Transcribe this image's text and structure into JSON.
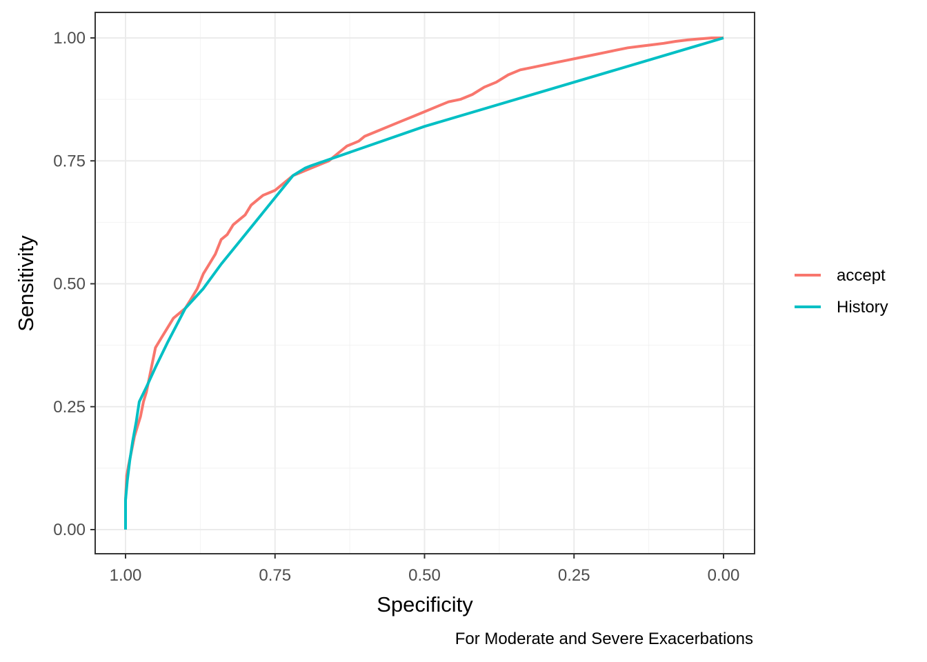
{
  "chart_data": {
    "type": "line",
    "title": "",
    "xlabel": "Specificity",
    "ylabel": "Sensitivity",
    "caption": "For Moderate and Severe Exacerbations",
    "xlim": [
      1.0,
      0.0
    ],
    "ylim": [
      0.0,
      1.0
    ],
    "x_reversed": true,
    "grid": true,
    "legend_position": "right",
    "x_tick_labels": [
      "1.00",
      "0.75",
      "0.50",
      "0.25",
      "0.00"
    ],
    "x_tick_values": [
      1.0,
      0.75,
      0.5,
      0.25,
      0.0
    ],
    "y_tick_labels": [
      "0.00",
      "0.25",
      "0.50",
      "0.75",
      "1.00"
    ],
    "y_tick_values": [
      0.0,
      0.25,
      0.5,
      0.75,
      1.0
    ],
    "series": [
      {
        "name": "accept",
        "color": "#F8766D",
        "x": [
          1.0,
          1.0,
          0.998,
          0.995,
          0.99,
          0.985,
          0.98,
          0.975,
          0.97,
          0.965,
          0.96,
          0.955,
          0.95,
          0.94,
          0.93,
          0.92,
          0.91,
          0.9,
          0.89,
          0.88,
          0.87,
          0.86,
          0.85,
          0.84,
          0.83,
          0.82,
          0.81,
          0.8,
          0.79,
          0.78,
          0.77,
          0.76,
          0.75,
          0.74,
          0.73,
          0.72,
          0.71,
          0.7,
          0.69,
          0.68,
          0.67,
          0.66,
          0.65,
          0.64,
          0.63,
          0.62,
          0.61,
          0.6,
          0.58,
          0.56,
          0.54,
          0.52,
          0.5,
          0.48,
          0.46,
          0.44,
          0.42,
          0.4,
          0.38,
          0.36,
          0.34,
          0.32,
          0.3,
          0.28,
          0.26,
          0.24,
          0.22,
          0.2,
          0.18,
          0.16,
          0.14,
          0.12,
          0.1,
          0.08,
          0.06,
          0.04,
          0.02,
          0.0
        ],
        "y": [
          0.0,
          0.06,
          0.11,
          0.13,
          0.16,
          0.19,
          0.21,
          0.23,
          0.26,
          0.28,
          0.31,
          0.34,
          0.37,
          0.39,
          0.41,
          0.43,
          0.44,
          0.45,
          0.47,
          0.49,
          0.52,
          0.54,
          0.56,
          0.59,
          0.6,
          0.62,
          0.63,
          0.64,
          0.66,
          0.67,
          0.68,
          0.685,
          0.69,
          0.7,
          0.71,
          0.72,
          0.725,
          0.73,
          0.735,
          0.74,
          0.745,
          0.75,
          0.76,
          0.77,
          0.78,
          0.785,
          0.79,
          0.8,
          0.81,
          0.82,
          0.83,
          0.84,
          0.85,
          0.86,
          0.87,
          0.875,
          0.885,
          0.9,
          0.91,
          0.925,
          0.935,
          0.94,
          0.945,
          0.95,
          0.955,
          0.96,
          0.965,
          0.97,
          0.975,
          0.98,
          0.983,
          0.986,
          0.989,
          0.993,
          0.996,
          0.998,
          1.0,
          1.0
        ]
      },
      {
        "name": "History",
        "color": "#00BFC4",
        "x": [
          1.0,
          1.0,
          0.997,
          0.993,
          0.988,
          0.982,
          0.977,
          0.965,
          0.95,
          0.93,
          0.9,
          0.87,
          0.84,
          0.8,
          0.76,
          0.72,
          0.7,
          0.69,
          0.5,
          0.25,
          0.0
        ],
        "y": [
          0.0,
          0.06,
          0.1,
          0.14,
          0.18,
          0.22,
          0.26,
          0.29,
          0.33,
          0.38,
          0.45,
          0.49,
          0.54,
          0.6,
          0.66,
          0.72,
          0.735,
          0.74,
          0.82,
          0.91,
          1.0
        ]
      }
    ]
  }
}
